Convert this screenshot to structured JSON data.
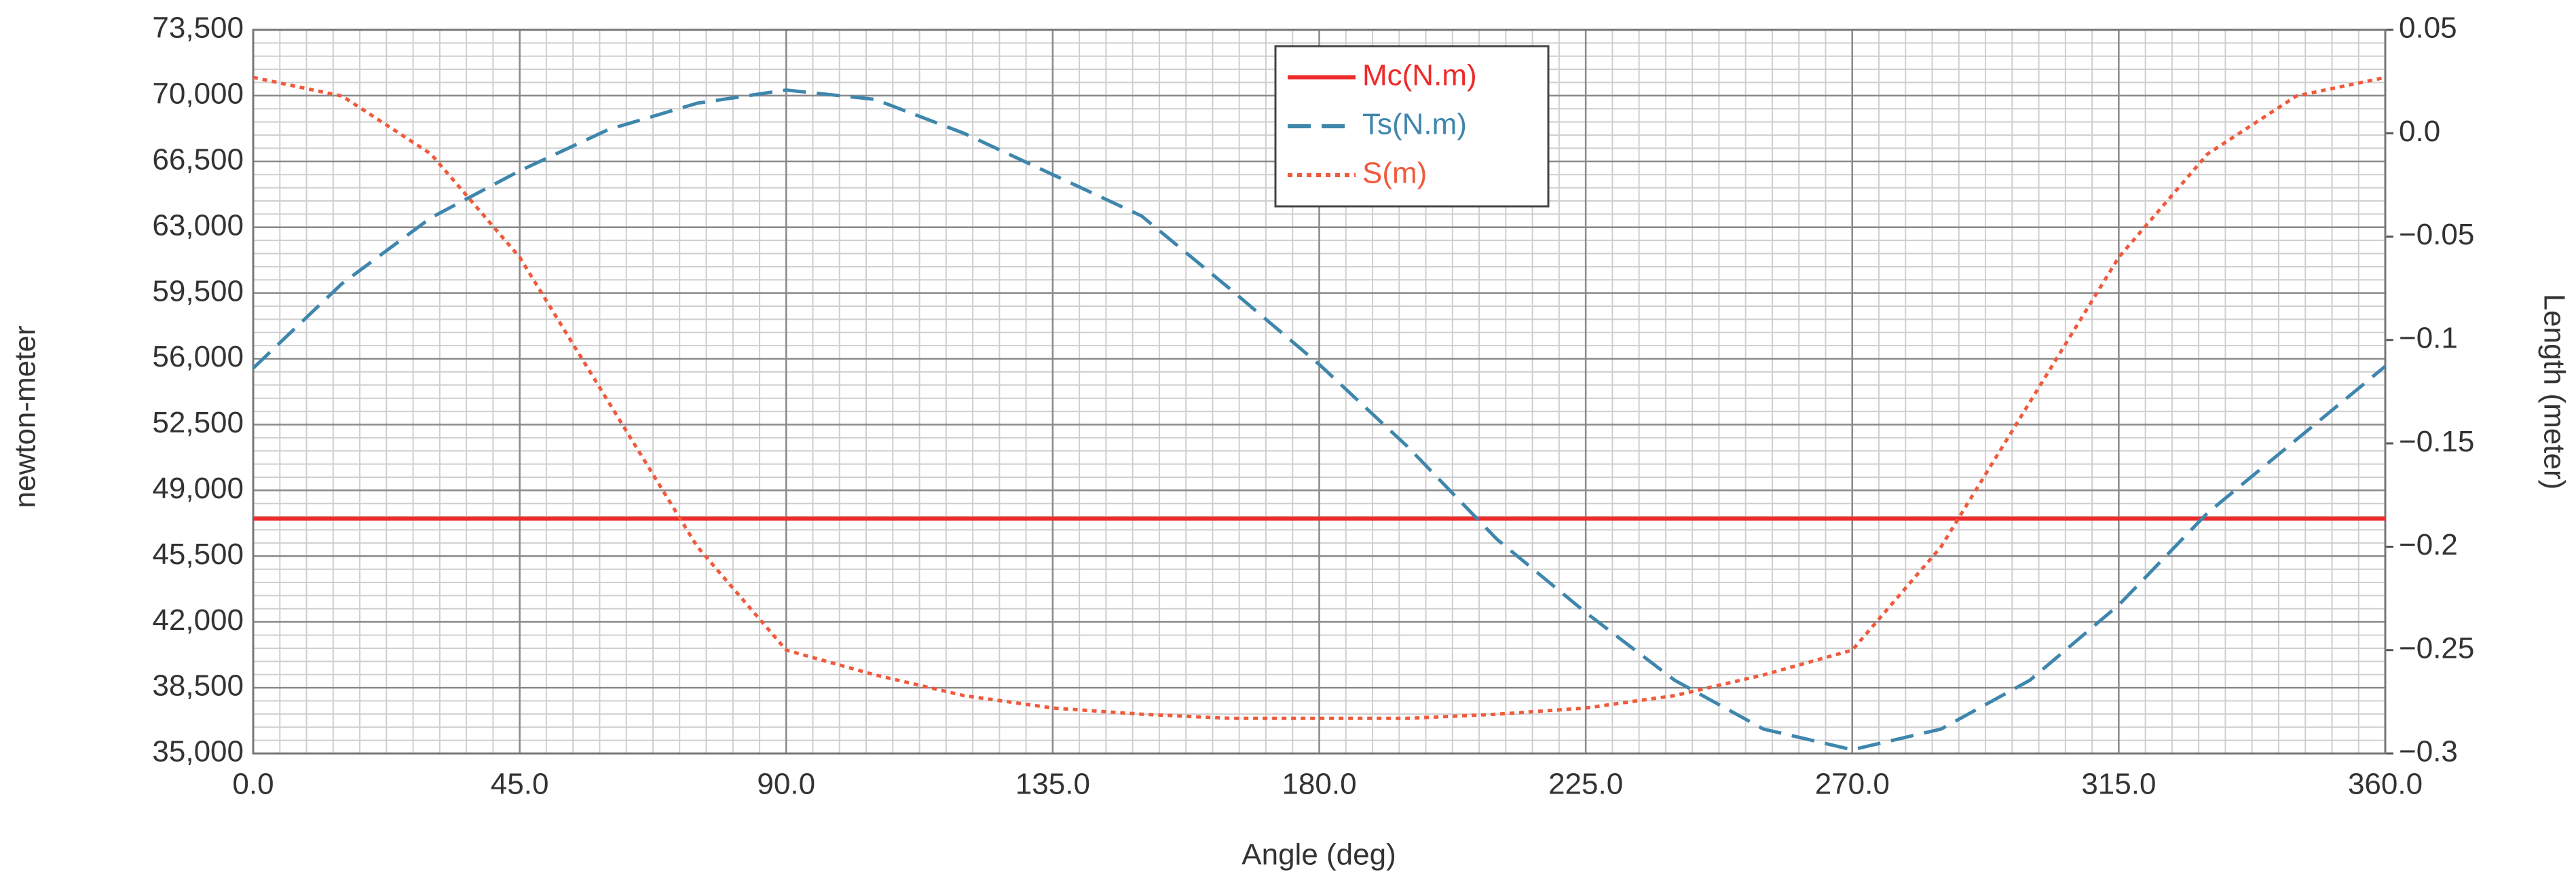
{
  "chart_data": {
    "type": "line",
    "x_label": "Angle (deg)",
    "y_label": "newton-meter",
    "y2_label": "Length (meter)",
    "x": [
      0,
      15,
      30,
      45,
      60,
      75,
      90,
      105,
      120,
      135,
      150,
      165,
      180,
      195,
      210,
      225,
      240,
      255,
      270,
      285,
      300,
      315,
      330,
      345,
      360
    ],
    "series": [
      {
        "name": "Mc(N.m)",
        "color": "#ee2a2a",
        "style": "solid",
        "axis": "y",
        "values": [
          47500,
          47500,
          47500,
          47500,
          47500,
          47500,
          47500,
          47500,
          47500,
          47500,
          47500,
          47500,
          47500,
          47500,
          47500,
          47500,
          47500,
          47500,
          47500,
          47500,
          47500,
          47500,
          47500,
          47500,
          47500
        ]
      },
      {
        "name": "Ts(N.m)",
        "color": "#3f86ad",
        "style": "dashed",
        "axis": "y",
        "values": [
          55500,
          60000,
          63500,
          66000,
          68200,
          69600,
          70300,
          69800,
          68000,
          65800,
          63600,
          59700,
          55700,
          51300,
          46400,
          42500,
          38900,
          36300,
          35200,
          36300,
          38900,
          42900,
          47800,
          51700,
          55600
        ]
      },
      {
        "name": "S(m)",
        "color": "#f05a3c",
        "style": "dotted",
        "axis": "y2",
        "values": [
          0.027,
          0.018,
          -0.01,
          -0.06,
          -0.13,
          -0.2,
          -0.25,
          -0.262,
          -0.272,
          -0.278,
          -0.281,
          -0.283,
          -0.283,
          -0.283,
          -0.281,
          -0.278,
          -0.272,
          -0.262,
          -0.25,
          -0.2,
          -0.13,
          -0.06,
          -0.01,
          0.018,
          0.027
        ]
      }
    ],
    "xlim": [
      0,
      360
    ],
    "xticks": [
      {
        "value": 0,
        "label": "0.0"
      },
      {
        "value": 45,
        "label": "45.0"
      },
      {
        "value": 90,
        "label": "90.0"
      },
      {
        "value": 135,
        "label": "135.0"
      },
      {
        "value": 180,
        "label": "180.0"
      },
      {
        "value": 225,
        "label": "225.0"
      },
      {
        "value": 270,
        "label": "270.0"
      },
      {
        "value": 315,
        "label": "315.0"
      },
      {
        "value": 360,
        "label": "360.0"
      }
    ],
    "ylim": [
      35000,
      73500
    ],
    "yticks": [
      {
        "value": 35000,
        "label": "35,000"
      },
      {
        "value": 38500,
        "label": "38,500"
      },
      {
        "value": 42000,
        "label": "42,000"
      },
      {
        "value": 45500,
        "label": "45,500"
      },
      {
        "value": 49000,
        "label": "49,000"
      },
      {
        "value": 52500,
        "label": "52,500"
      },
      {
        "value": 56000,
        "label": "56,000"
      },
      {
        "value": 59500,
        "label": "59,500"
      },
      {
        "value": 63000,
        "label": "63,000"
      },
      {
        "value": 66500,
        "label": "66,500"
      },
      {
        "value": 70000,
        "label": "70,000"
      },
      {
        "value": 73500,
        "label": "73,500"
      }
    ],
    "y2lim": [
      -0.3,
      0.05
    ],
    "y2ticks": [
      {
        "value": -0.3,
        "label": "−0.3"
      },
      {
        "value": -0.25,
        "label": "−0.25"
      },
      {
        "value": -0.2,
        "label": "−0.2"
      },
      {
        "value": -0.15,
        "label": "−0.15"
      },
      {
        "value": -0.1,
        "label": "−0.1"
      },
      {
        "value": -0.05,
        "label": "−0.05"
      },
      {
        "value": 0,
        "label": "0.0"
      },
      0.05
    ],
    "grid": true,
    "legend": "top"
  }
}
